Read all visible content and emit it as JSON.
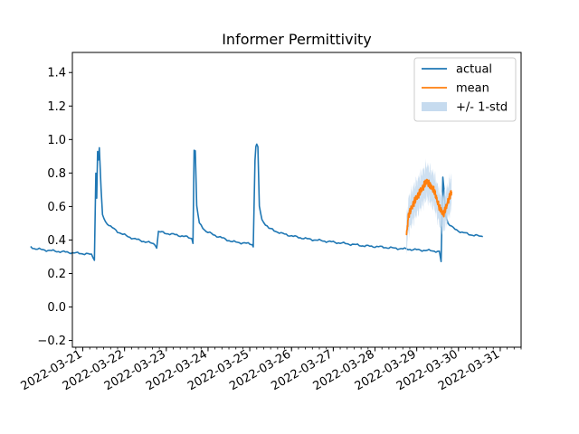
{
  "chart_data": {
    "type": "line",
    "title": "Informer Permittivity",
    "xlabel": "",
    "ylabel": "",
    "xlim": [
      "2022-03-20T18:00",
      "2022-03-31T12:00"
    ],
    "ylim": [
      -0.24,
      1.52
    ],
    "x_ticks": [
      "2022-03-21",
      "2022-03-22",
      "2022-03-23",
      "2022-03-24",
      "2022-03-25",
      "2022-03-26",
      "2022-03-27",
      "2022-03-28",
      "2022-03-29",
      "2022-03-30",
      "2022-03-31"
    ],
    "y_ticks": [
      "−0.2",
      "0.0",
      "0.2",
      "0.4",
      "0.6",
      "0.8",
      "1.0",
      "1.2",
      "1.4"
    ],
    "grid": false,
    "legend": {
      "placement": "top-right",
      "entries": [
        "actual",
        "mean",
        "+/- 1-std"
      ]
    },
    "colors": {
      "actual": "#1f77b4",
      "mean": "#ff7f0e",
      "band": "#c6dbef"
    },
    "series": [
      {
        "name": "actual",
        "points": [
          [
            "2022-03-21T00:00",
            0.36
          ],
          [
            "2022-03-21T02:00",
            0.35
          ],
          [
            "2022-03-21T06:00",
            0.343
          ],
          [
            "2022-03-21T10:00",
            0.338
          ],
          [
            "2022-03-21T14:00",
            0.334
          ],
          [
            "2022-03-21T18:00",
            0.33
          ],
          [
            "2022-03-21T22:00",
            0.326
          ],
          [
            "2022-03-22T02:00",
            0.322
          ],
          [
            "2022-03-22T06:00",
            0.319
          ],
          [
            "2022-03-22T09:00",
            0.316
          ],
          [
            "2022-03-22T11:00",
            0.312
          ],
          [
            "2022-03-22T12:40",
            0.285
          ],
          [
            "2022-03-22T13:30",
            0.8
          ],
          [
            "2022-03-22T14:00",
            0.65
          ],
          [
            "2022-03-22T14:30",
            0.93
          ],
          [
            "2022-03-22T15:00",
            0.88
          ],
          [
            "2022-03-22T15:30",
            0.95
          ],
          [
            "2022-03-22T16:30",
            0.7
          ],
          [
            "2022-03-22T17:20",
            0.55
          ],
          [
            "2022-03-22T19:00",
            0.51
          ],
          [
            "2022-03-22T22:00",
            0.48
          ],
          [
            "2022-03-23T02:00",
            0.45
          ],
          [
            "2022-03-23T08:00",
            0.42
          ],
          [
            "2022-03-23T14:00",
            0.4
          ],
          [
            "2022-03-23T20:00",
            0.385
          ],
          [
            "2022-03-23T23:30",
            0.375
          ],
          [
            "2022-03-24T00:30",
            0.355
          ],
          [
            "2022-03-24T01:30",
            0.45
          ],
          [
            "2022-03-24T06:00",
            0.44
          ],
          [
            "2022-03-24T12:00",
            0.43
          ],
          [
            "2022-03-24T17:00",
            0.42
          ],
          [
            "2022-03-24T20:40",
            0.41
          ],
          [
            "2022-03-24T21:20",
            0.385
          ],
          [
            "2022-03-24T22:00",
            0.94
          ],
          [
            "2022-03-24T22:40",
            0.93
          ],
          [
            "2022-03-24T23:30",
            0.6
          ],
          [
            "2022-03-25T01:00",
            0.5
          ],
          [
            "2022-03-25T05:00",
            0.45
          ],
          [
            "2022-03-25T12:00",
            0.42
          ],
          [
            "2022-03-25T20:00",
            0.39
          ],
          [
            "2022-03-26T04:00",
            0.38
          ],
          [
            "2022-03-26T07:20",
            0.375
          ],
          [
            "2022-03-26T08:00",
            0.36
          ],
          [
            "2022-03-26T09:00",
            0.88
          ],
          [
            "2022-03-26T09:30",
            0.96
          ],
          [
            "2022-03-26T10:00",
            0.97
          ],
          [
            "2022-03-26T10:40",
            0.95
          ],
          [
            "2022-03-26T11:30",
            0.6
          ],
          [
            "2022-03-26T13:00",
            0.52
          ],
          [
            "2022-03-26T17:00",
            0.47
          ],
          [
            "2022-03-27T00:00",
            0.44
          ],
          [
            "2022-03-27T08:00",
            0.42
          ],
          [
            "2022-03-27T16:00",
            0.405
          ],
          [
            "2022-03-28T00:00",
            0.395
          ],
          [
            "2022-03-28T08:00",
            0.385
          ],
          [
            "2022-03-28T16:00",
            0.375
          ],
          [
            "2022-03-29T00:00",
            0.365
          ],
          [
            "2022-03-29T08:00",
            0.36
          ],
          [
            "2022-03-29T16:00",
            0.352
          ],
          [
            "2022-03-30T00:00",
            0.346
          ],
          [
            "2022-03-30T08:00",
            0.34
          ],
          [
            "2022-03-30T16:00",
            0.335
          ],
          [
            "2022-03-30T19:00",
            0.33
          ],
          [
            "2022-03-30T20:00",
            0.27
          ],
          [
            "2022-03-30T21:00",
            0.77
          ],
          [
            "2022-03-30T21:40",
            0.7
          ],
          [
            "2022-03-30T22:40",
            0.55
          ],
          [
            "2022-03-31T00:00",
            0.5
          ],
          [
            "2022-03-31T03:00",
            0.47
          ],
          [
            "2022-03-31T08:00",
            0.445
          ],
          [
            "2022-03-31T14:00",
            0.43
          ],
          [
            "2022-03-31T20:00",
            0.42
          ]
        ]
      }
    ]
  }
}
